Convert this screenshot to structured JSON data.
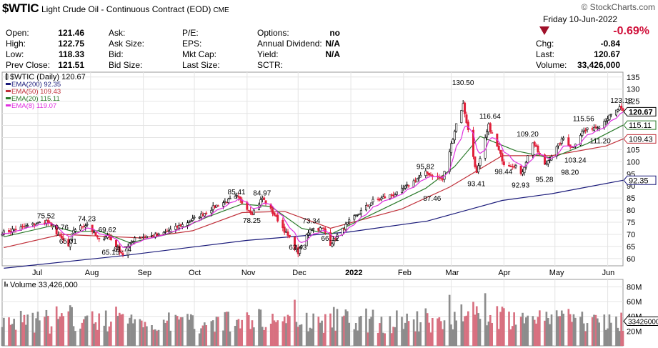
{
  "header": {
    "symbol": "$WTIC",
    "name": "Light Crude Oil - Continuous Contract (EOD)",
    "exchange": "CME",
    "logo": "© StockCharts.com",
    "date": "Friday  10-Jun-2022",
    "change_pct": "-0.69%"
  },
  "quote": {
    "col1": [
      {
        "label": "Open:",
        "value": "121.46"
      },
      {
        "label": "High:",
        "value": "122.75"
      },
      {
        "label": "Low:",
        "value": "118.33"
      },
      {
        "label": "Prev Close:",
        "value": "121.51"
      }
    ],
    "col2": [
      {
        "label": "Ask:",
        "value": ""
      },
      {
        "label": "Ask Size:",
        "value": ""
      },
      {
        "label": "Bid:",
        "value": ""
      },
      {
        "label": "Bid Size:",
        "value": ""
      }
    ],
    "col3": [
      {
        "label": "P/E:",
        "value": ""
      },
      {
        "label": "EPS:",
        "value": ""
      },
      {
        "label": "Mkt Cap:",
        "value": ""
      },
      {
        "label": "Last Size:",
        "value": ""
      }
    ],
    "col4": [
      {
        "label": "Options:",
        "value": "no"
      },
      {
        "label": "Annual Dividend:",
        "value": "N/A"
      },
      {
        "label": "Yield:",
        "value": "N/A"
      },
      {
        "label": "SCTR:",
        "value": ""
      }
    ],
    "col5": [
      {
        "label": "Chg:",
        "value": "-0.84"
      },
      {
        "label": "Last:",
        "value": "120.67"
      },
      {
        "label": "Volume:",
        "value": "33,426,000"
      }
    ]
  },
  "colors": {
    "up": "#ffffff",
    "down": "#e0203a",
    "ema200": "#1a1a7a",
    "ema50": "#c0303a",
    "ema20": "#2a7a2a",
    "ema8": "#e030e0",
    "vol_up": "#8c8c8c",
    "vol_down": "#d87080",
    "grid": "#e4e4e4"
  },
  "chart_data": {
    "type": "candlestick",
    "price_panel": {
      "legend": [
        {
          "text": "$WTIC (Daily) 120.67",
          "color": "#000000",
          "icon": "candle-icon"
        },
        {
          "text": "EMA(200) 92.35",
          "color": "#1a1a7a"
        },
        {
          "text": "EMA(50) 109.43",
          "color": "#c0303a"
        },
        {
          "text": "EMA(20) 115.11",
          "color": "#2a7a2a"
        },
        {
          "text": "EMA(8) 119.07",
          "color": "#e030e0"
        }
      ],
      "y_ticks": [
        60,
        65,
        70,
        75,
        80,
        85,
        90,
        95,
        100,
        105,
        110,
        115,
        120,
        125,
        130,
        135
      ],
      "y_range": [
        57,
        137
      ],
      "price_path": [
        [
          "2021-06-11",
          70.8
        ],
        [
          "2021-06-22",
          72.9
        ],
        [
          "2021-07-06",
          75.52
        ],
        [
          "2021-07-19",
          65.01
        ],
        [
          "2021-07-22",
          71.9
        ],
        [
          "2021-07-30",
          74.23
        ],
        [
          "2021-08-06",
          67.5
        ],
        [
          "2021-08-11",
          69.62
        ],
        [
          "2021-08-20",
          61.74
        ],
        [
          "2021-08-27",
          68.7
        ],
        [
          "2021-09-10",
          69.7
        ],
        [
          "2021-09-24",
          73.9
        ],
        [
          "2021-10-04",
          77.6
        ],
        [
          "2021-10-15",
          82.3
        ],
        [
          "2021-10-26",
          85.41
        ],
        [
          "2021-11-04",
          78.8
        ],
        [
          "2021-11-10",
          84.97
        ],
        [
          "2021-11-19",
          76.1
        ],
        [
          "2021-11-26",
          68.2
        ],
        [
          "2021-12-01",
          62.43
        ],
        [
          "2021-12-08",
          72.4
        ],
        [
          "2021-12-16",
          72.3
        ],
        [
          "2021-12-20",
          66.12
        ],
        [
          "2021-12-31",
          75.2
        ],
        [
          "2022-01-14",
          83.8
        ],
        [
          "2022-01-28",
          86.8
        ],
        [
          "2022-02-14",
          95.5
        ],
        [
          "2022-02-24",
          92.8
        ],
        [
          "2022-03-04",
          115.7
        ],
        [
          "2022-03-08",
          123.7
        ],
        [
          "2022-03-16",
          95.0
        ],
        [
          "2022-03-23",
          114.9
        ],
        [
          "2022-04-01",
          99.3
        ],
        [
          "2022-04-08",
          98.3
        ],
        [
          "2022-04-11",
          94.3
        ],
        [
          "2022-04-18",
          108.2
        ],
        [
          "2022-04-25",
          98.5
        ],
        [
          "2022-05-06",
          109.8
        ],
        [
          "2022-05-11",
          105.7
        ],
        [
          "2022-05-17",
          112.4
        ],
        [
          "2022-05-27",
          115.1
        ],
        [
          "2022-06-08",
          122.1
        ],
        [
          "2022-06-10",
          120.67
        ]
      ],
      "annotations": [
        {
          "label": "75.52",
          "date": "2021-07-06",
          "price": 75.52
        },
        {
          "label": "74.23",
          "date": "2021-07-30",
          "price": 74.23
        },
        {
          "label": "70.76",
          "date": "2021-07-14",
          "price": 70.76
        },
        {
          "label": "69.62",
          "date": "2021-08-11",
          "price": 69.62
        },
        {
          "label": "65.01",
          "date": "2021-07-19",
          "price": 65.01
        },
        {
          "label": "65.15",
          "date": "2021-08-13",
          "price": 65.15
        },
        {
          "label": "61.74",
          "date": "2021-08-20",
          "price": 61.74
        },
        {
          "label": "85.41",
          "date": "2021-10-26",
          "price": 85.41
        },
        {
          "label": "84.97",
          "date": "2021-11-10",
          "price": 84.97
        },
        {
          "label": "78.25",
          "date": "2021-11-04",
          "price": 78.25
        },
        {
          "label": "73.34",
          "date": "2021-12-09",
          "price": 73.34
        },
        {
          "label": "62.43",
          "date": "2021-12-01",
          "price": 62.43
        },
        {
          "label": "66.12",
          "date": "2021-12-20",
          "price": 66.12
        },
        {
          "label": "95.82",
          "date": "2022-02-14",
          "price": 95.82
        },
        {
          "label": "87.46",
          "date": "2022-02-18",
          "price": 87.46
        },
        {
          "label": "130.50",
          "date": "2022-03-07",
          "price": 130.5
        },
        {
          "label": "116.64",
          "date": "2022-03-23",
          "price": 116.64
        },
        {
          "label": "109.20",
          "date": "2022-04-14",
          "price": 109.2
        },
        {
          "label": "93.41",
          "date": "2022-03-16",
          "price": 93.41
        },
        {
          "label": "98.44",
          "date": "2022-04-01",
          "price": 98.44
        },
        {
          "label": "92.93",
          "date": "2022-04-11",
          "price": 92.93
        },
        {
          "label": "95.28",
          "date": "2022-04-25",
          "price": 95.28
        },
        {
          "label": "115.56",
          "date": "2022-05-17",
          "price": 115.56
        },
        {
          "label": "98.20",
          "date": "2022-05-10",
          "price": 98.2
        },
        {
          "label": "103.24",
          "date": "2022-05-12",
          "price": 103.24
        },
        {
          "label": "111.20",
          "date": "2022-05-27",
          "price": 111.2
        },
        {
          "label": "123.18",
          "date": "2022-06-08",
          "price": 123.18
        }
      ],
      "ema200": [
        [
          "2021-06-11",
          56.0
        ],
        [
          "2021-08-20",
          61.2
        ],
        [
          "2021-11-01",
          67.5
        ],
        [
          "2021-12-31",
          71.0
        ],
        [
          "2022-02-15",
          75.5
        ],
        [
          "2022-03-31",
          84.0
        ],
        [
          "2022-04-29",
          86.8
        ],
        [
          "2022-06-10",
          92.35
        ]
      ],
      "ema50": [
        [
          "2021-06-11",
          64.5
        ],
        [
          "2021-07-15",
          70.0
        ],
        [
          "2021-08-31",
          68.5
        ],
        [
          "2021-09-30",
          71.5
        ],
        [
          "2021-10-29",
          79.0
        ],
        [
          "2021-11-23",
          79.5
        ],
        [
          "2021-12-20",
          72.5
        ],
        [
          "2022-01-31",
          80.5
        ],
        [
          "2022-02-28",
          89.5
        ],
        [
          "2022-03-31",
          102.5
        ],
        [
          "2022-04-29",
          102.5
        ],
        [
          "2022-05-31",
          106.5
        ],
        [
          "2022-06-10",
          109.43
        ]
      ],
      "ema20": [
        [
          "2021-06-11",
          69.0
        ],
        [
          "2021-07-09",
          73.5
        ],
        [
          "2021-07-23",
          71.0
        ],
        [
          "2021-08-06",
          71.5
        ],
        [
          "2021-08-24",
          66.5
        ],
        [
          "2021-09-15",
          70.0
        ],
        [
          "2021-10-08",
          77.0
        ],
        [
          "2021-10-29",
          82.5
        ],
        [
          "2021-11-15",
          81.5
        ],
        [
          "2021-12-03",
          72.5
        ],
        [
          "2021-12-20",
          70.0
        ],
        [
          "2022-01-14",
          78.5
        ],
        [
          "2022-02-14",
          89.0
        ],
        [
          "2022-03-03",
          98.0
        ],
        [
          "2022-03-18",
          110.5
        ],
        [
          "2022-04-08",
          104.5
        ],
        [
          "2022-04-29",
          101.5
        ],
        [
          "2022-05-20",
          107.5
        ],
        [
          "2022-06-10",
          115.11
        ]
      ]
    },
    "volume_panel": {
      "legend": "Volume 33,426,000",
      "y_ticks": [
        {
          "label": "80M",
          "value": 80
        },
        {
          "label": "60M",
          "value": 60
        },
        {
          "label": "40M",
          "value": 40
        },
        {
          "label": "20M",
          "value": 20
        }
      ],
      "y_range": [
        0,
        90
      ],
      "last_label": "33426000",
      "last_value": 33.426
    },
    "x_ticks": [
      {
        "label": "Jul",
        "date": "2021-07-01"
      },
      {
        "label": "Aug",
        "date": "2021-08-01"
      },
      {
        "label": "Sep",
        "date": "2021-09-01"
      },
      {
        "label": "Oct",
        "date": "2021-10-01"
      },
      {
        "label": "Nov",
        "date": "2021-11-01"
      },
      {
        "label": "Dec",
        "date": "2021-12-01"
      },
      {
        "label": "2022",
        "date": "2022-01-01",
        "bold": true
      },
      {
        "label": "Feb",
        "date": "2022-02-01"
      },
      {
        "label": "Mar",
        "date": "2022-03-01"
      },
      {
        "label": "Apr",
        "date": "2022-04-01"
      },
      {
        "label": "May",
        "date": "2022-05-01"
      },
      {
        "label": "Jun",
        "date": "2022-06-01"
      }
    ],
    "date_range": [
      "2021-06-10",
      "2022-06-10"
    ],
    "price_labels": [
      {
        "label": "120.67",
        "value": 120.67,
        "style": "last"
      },
      {
        "label": "115.11",
        "value": 115.11,
        "color": "#2a7a2a"
      },
      {
        "label": "109.43",
        "value": 109.43,
        "color": "#c0303a"
      },
      {
        "label": "92.35",
        "value": 92.35,
        "color": "#1a1a7a"
      }
    ]
  }
}
